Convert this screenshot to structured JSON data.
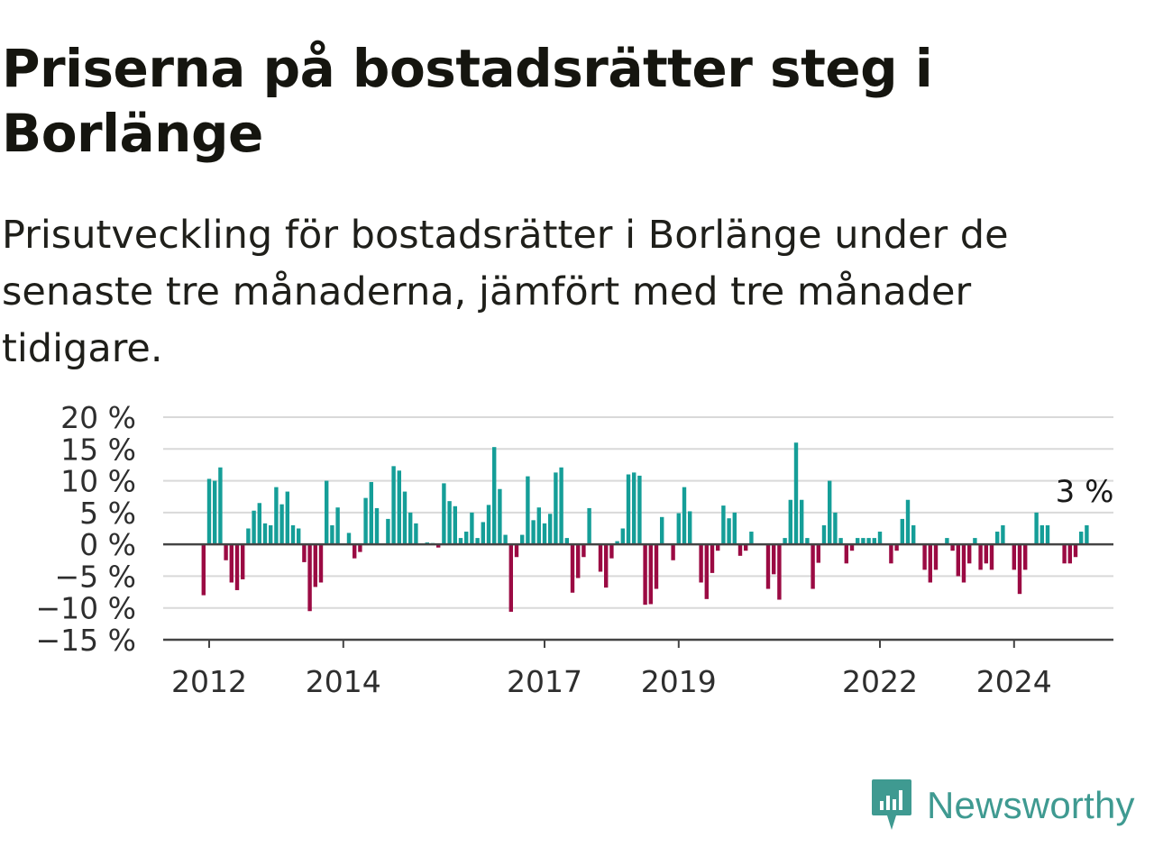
{
  "title": "Priserna på bostadsrätter steg i Borlänge",
  "subtitle": "Prisutveckling för bostadsrätter i Borlänge under de senaste tre månaderna, jämfört med tre månader tidigare.",
  "brand": {
    "name": "Newsworthy",
    "logo_icon": "newsworthy-chart-bubble-icon"
  },
  "colors": {
    "positive": "#159e98",
    "negative": "#9b0a43",
    "grid": "#d9d9d9",
    "axis": "#444444",
    "brand": "#3f9a91"
  },
  "chart_data": {
    "type": "bar",
    "title": "",
    "xlabel": "",
    "ylabel": "",
    "y_unit": "%",
    "ylim": [
      -15,
      20
    ],
    "y_ticks": [
      20,
      15,
      10,
      5,
      0,
      -5,
      -10,
      -15
    ],
    "y_tick_labels": [
      "20 %",
      "15 %",
      "10 %",
      "5 %",
      "0 %",
      "−5 %",
      "−10 %",
      "−15 %"
    ],
    "x_ticks": [
      "2012",
      "2014",
      "2017",
      "2019",
      "2022",
      "2024"
    ],
    "x_start": "2011-12",
    "grid": true,
    "legend": "none",
    "annotation": {
      "label": "3 %",
      "target": "last"
    },
    "series": [
      {
        "values": [
          -8,
          10.3,
          10,
          12.1,
          -2.5,
          -6,
          -7.2,
          -5.5,
          2.5,
          5.3,
          6.5,
          3.3,
          3,
          9,
          6.3,
          8.3,
          3,
          2.5,
          -2.8,
          -10.5,
          -6.7,
          -6,
          10,
          3,
          5.8,
          0,
          1.8,
          -2.2,
          -1.2,
          7.3,
          9.8,
          5.7,
          0,
          4,
          12.3,
          11.6,
          8.3,
          5,
          3.3,
          0,
          0.3,
          0.2,
          -0.5,
          9.6,
          6.8,
          6,
          1,
          2,
          5,
          1,
          3.5,
          6.2,
          15.3,
          8.7,
          1.5,
          -10.6,
          -2,
          1.5,
          10.7,
          3.8,
          5.8,
          3.3,
          4.8,
          11.3,
          12.1,
          1,
          -7.6,
          -5.3,
          -2,
          5.7,
          0,
          -4.3,
          -6.8,
          -2.2,
          0.5,
          2.5,
          11,
          11.3,
          10.8,
          -9.5,
          -9.4,
          -7,
          4.3,
          0,
          -2.5,
          4.9,
          9,
          5.2,
          0,
          -6,
          -8.6,
          -4.5,
          -1,
          6.1,
          4.1,
          5,
          -1.8,
          -1,
          2,
          0,
          0,
          -7,
          -4.7,
          -8.7,
          1,
          7,
          16,
          7,
          1,
          -7,
          -2.9,
          3,
          10,
          5,
          1,
          -3,
          -1,
          1,
          1,
          1,
          1,
          2,
          0,
          -3,
          -1,
          4,
          7,
          3,
          0,
          -4,
          -6,
          -4,
          0,
          1,
          -1,
          -5,
          -6,
          -3,
          1,
          -4,
          -3,
          -4,
          2,
          3,
          0,
          -4,
          -7.8,
          -4,
          0,
          5,
          3,
          3,
          0,
          0,
          -3,
          -3,
          -2,
          2,
          3
        ]
      }
    ]
  }
}
